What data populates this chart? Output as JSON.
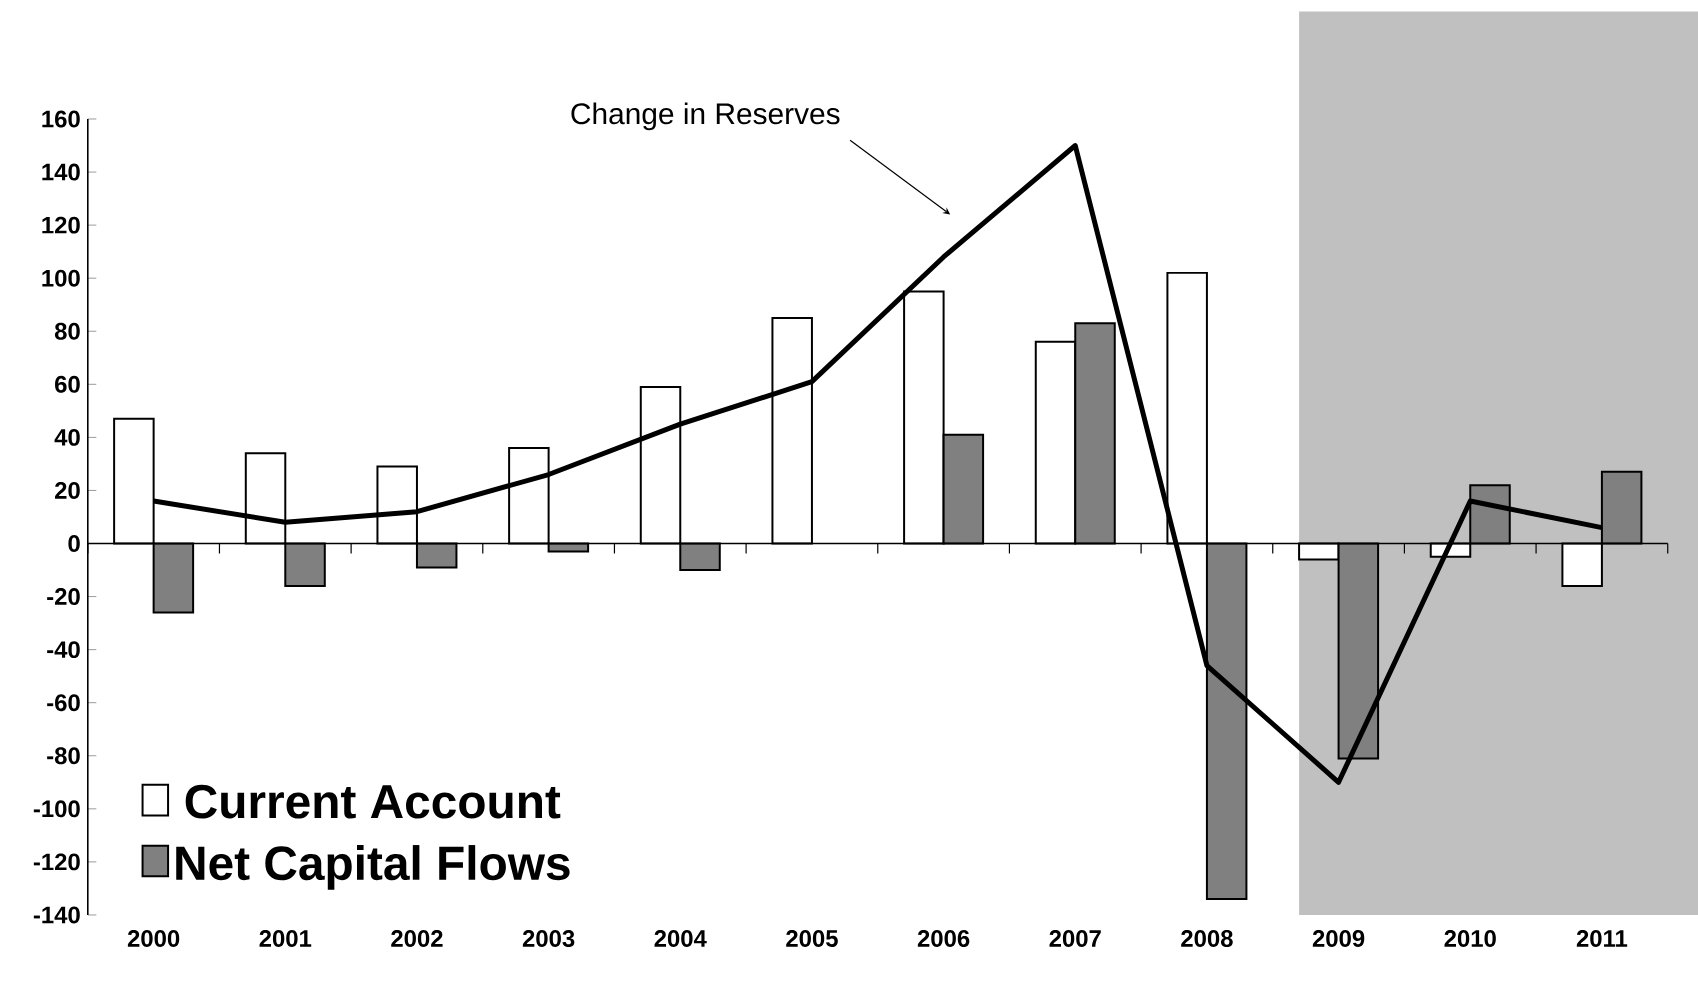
{
  "chart_data": {
    "type": "bar",
    "categories": [
      "2000",
      "2001",
      "2002",
      "2003",
      "2004",
      "2005",
      "2006",
      "2007",
      "2008",
      "2009",
      "2010",
      "2011"
    ],
    "series": [
      {
        "name": "Current Account",
        "color": "#ffffff",
        "values": [
          47,
          34,
          29,
          36,
          59,
          85,
          95,
          76,
          102,
          -6,
          -5,
          -16
        ]
      },
      {
        "name": "Net Capital Flows",
        "color": "#808080",
        "values": [
          -26,
          -16,
          -9,
          -3,
          -10,
          null,
          41,
          83,
          -134,
          -81,
          22,
          27
        ]
      },
      {
        "name": "Change in Reserves",
        "type": "line",
        "color": "#000000",
        "values": [
          16,
          8,
          12,
          26,
          45,
          61,
          108,
          150,
          -46,
          -90,
          16,
          6
        ]
      }
    ],
    "ylim": [
      -140,
      160
    ],
    "yticks": [
      -140,
      -120,
      -100,
      -80,
      -60,
      -40,
      -20,
      0,
      20,
      40,
      60,
      80,
      100,
      120,
      140,
      160
    ],
    "bands": [
      {
        "axis": "x",
        "from": "2009",
        "to": "2011",
        "color": "#c0c0c0"
      }
    ],
    "legend": "bottom left"
  }
}
